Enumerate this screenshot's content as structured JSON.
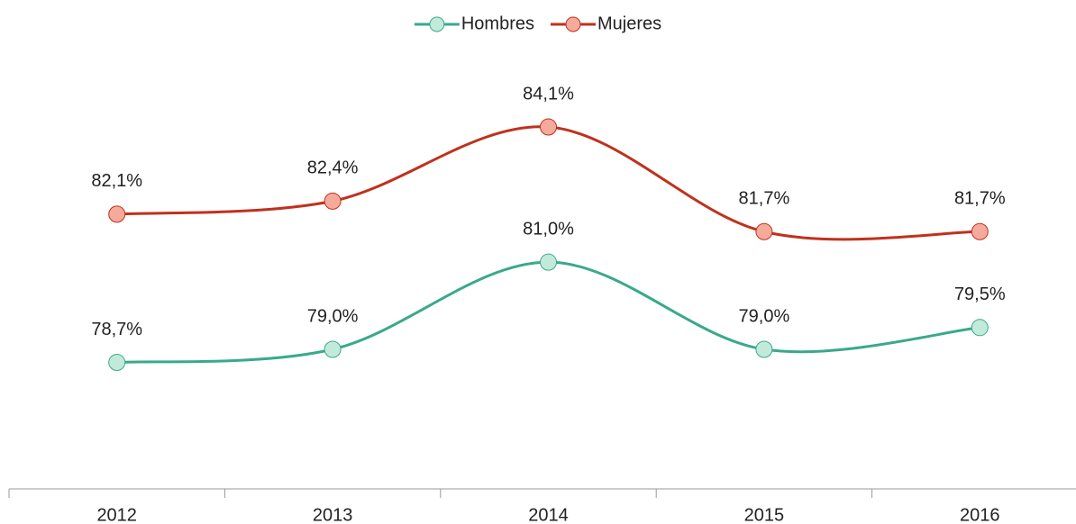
{
  "chart_data": {
    "type": "line",
    "categories": [
      "2012",
      "2013",
      "2014",
      "2015",
      "2016"
    ],
    "series": [
      {
        "name": "Hombres",
        "color": "#3aa98a",
        "marker_color": "#c2eadb",
        "values": [
          78.7,
          79.0,
          81.0,
          79.0,
          79.5
        ],
        "value_labels": [
          "78,7%",
          "79,0%",
          "81,0%",
          "79,0%",
          "79,5%"
        ]
      },
      {
        "name": "Mujeres",
        "color": "#c0311d",
        "marker_color": "#f5aa9c",
        "values": [
          82.1,
          82.4,
          84.1,
          81.7,
          81.7
        ],
        "value_labels": [
          "82,1%",
          "82,4%",
          "84,1%",
          "81,7%",
          "81,7%"
        ]
      }
    ],
    "ylim": [
      75.8,
      86
    ],
    "smooth": true,
    "legend": "top"
  }
}
